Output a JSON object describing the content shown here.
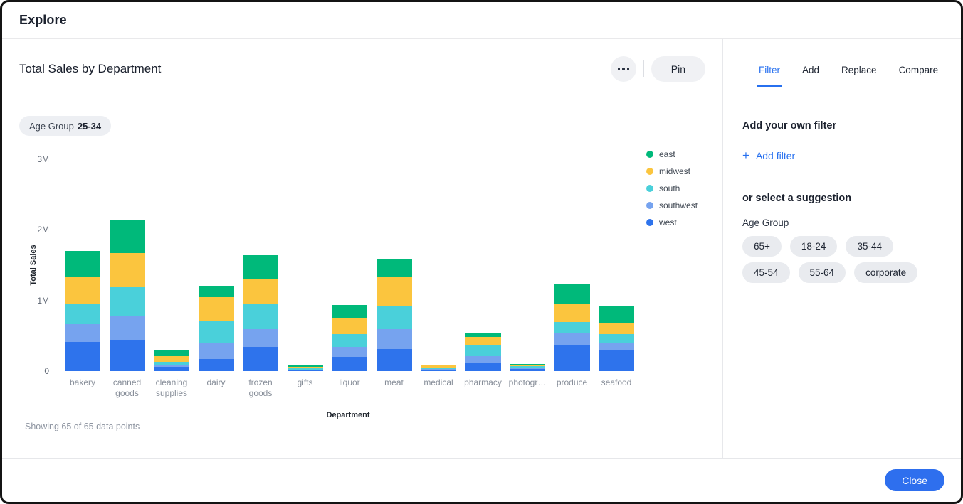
{
  "window": {
    "title": "Explore"
  },
  "viz": {
    "title": "Total Sales by Department",
    "menu_button": "more-options",
    "pin_label": "Pin",
    "filter_chip": {
      "label": "Age Group",
      "value": "25-34"
    },
    "data_note": "Showing 65 of 65 data points"
  },
  "chart_data": {
    "type": "bar",
    "stacked": true,
    "title": "Total Sales by Department",
    "xlabel": "Department",
    "ylabel": "Total Sales",
    "ylim": [
      0,
      3000000
    ],
    "yticks": [
      {
        "value": 0,
        "label": "0"
      },
      {
        "value": 1000000,
        "label": "1M"
      },
      {
        "value": 2000000,
        "label": "2M"
      },
      {
        "value": 3000000,
        "label": "3M"
      }
    ],
    "grid": false,
    "legend_position": "right",
    "stack_order_bottom_to_top": [
      "west",
      "southwest",
      "south",
      "midwest",
      "east"
    ],
    "categories": [
      "bakery",
      "canned goods",
      "cleaning supplies",
      "dairy",
      "frozen goods",
      "gifts",
      "liquor",
      "meat",
      "medical",
      "pharmacy",
      "photogr…",
      "produce",
      "seafood"
    ],
    "series": [
      {
        "name": "east",
        "color": "#00b97a",
        "values": [
          375000,
          460000,
          84000,
          155000,
          330000,
          16000,
          190000,
          250000,
          14000,
          57000,
          13000,
          280000,
          240000
        ]
      },
      {
        "name": "midwest",
        "color": "#fbc53e",
        "values": [
          380000,
          480000,
          80000,
          330000,
          360000,
          18000,
          230000,
          400000,
          30000,
          120000,
          20000,
          260000,
          165000
        ]
      },
      {
        "name": "south",
        "color": "#4ad0da",
        "values": [
          285000,
          415000,
          43000,
          320000,
          360000,
          18000,
          180000,
          340000,
          13000,
          155000,
          24000,
          170000,
          130000
        ]
      },
      {
        "name": "southwest",
        "color": "#76a3ef",
        "values": [
          255000,
          330000,
          37000,
          220000,
          250000,
          12000,
          140000,
          280000,
          13000,
          100000,
          16000,
          170000,
          90000
        ]
      },
      {
        "name": "west",
        "color": "#2e73ec",
        "values": [
          410000,
          445000,
          56000,
          175000,
          340000,
          12000,
          200000,
          310000,
          20000,
          110000,
          30000,
          360000,
          305000
        ]
      }
    ]
  },
  "sidebar": {
    "tabs": [
      {
        "label": "Filter",
        "active": true
      },
      {
        "label": "Add",
        "active": false
      },
      {
        "label": "Replace",
        "active": false
      },
      {
        "label": "Compare",
        "active": false
      }
    ],
    "add_filter_heading": "Add your own filter",
    "add_filter_link": "Add filter",
    "plus_glyph": "+",
    "suggestion_heading": "or select a suggestion",
    "suggestion_group_label": "Age Group",
    "suggestions": [
      "65+",
      "18-24",
      "35-44",
      "45-54",
      "55-64",
      "corporate"
    ]
  },
  "footer": {
    "close_label": "Close"
  }
}
